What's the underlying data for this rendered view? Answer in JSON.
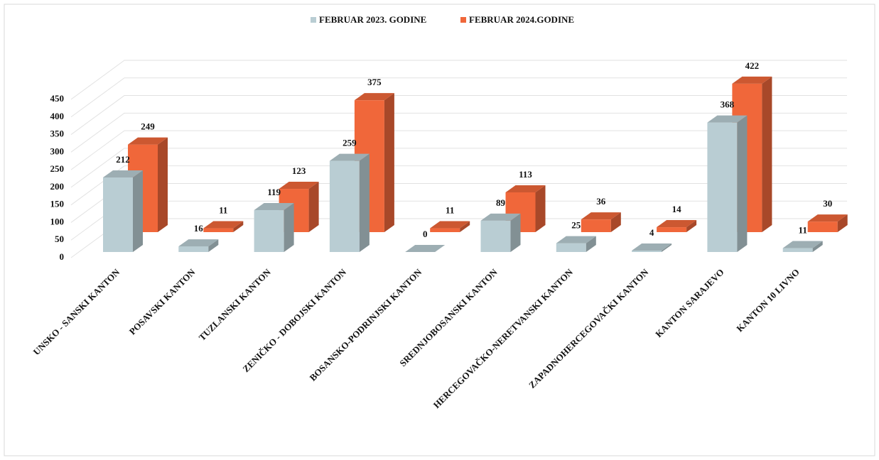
{
  "chart_data": {
    "type": "bar3d",
    "categories": [
      "UNSKO - SANSKI KANTON",
      "POSAVSKI KANTON",
      "TUZLANSKI KANTON",
      "ZENIČKO - DOBOJSKI KANTON",
      "BOSANSKO-PODRINJSKI KANTON",
      "SREDNJOBOSANSKI KANTON",
      "HERCEGOVAČKO-NERETVANSKI KANTON",
      "ZAPADNOHERCEGOVAČKI KANTON",
      "KANTON SARAJEVO",
      "KANTON 10 LIVNO"
    ],
    "series": [
      {
        "name": "FEBRUAR  2023. GODINE",
        "color": "#b9cdd3",
        "values": [
          212,
          16,
          119,
          259,
          0,
          89,
          25,
          4,
          368,
          11
        ]
      },
      {
        "name": "FEBRUAR 2024.GODINE",
        "color": "#f0673a",
        "values": [
          249,
          11,
          123,
          375,
          11,
          113,
          36,
          14,
          422,
          30
        ]
      }
    ],
    "ylim": [
      0,
      450
    ],
    "yticks": [
      0,
      50,
      100,
      150,
      200,
      250,
      300,
      350,
      400,
      450
    ],
    "grid": true,
    "legend": "top"
  }
}
